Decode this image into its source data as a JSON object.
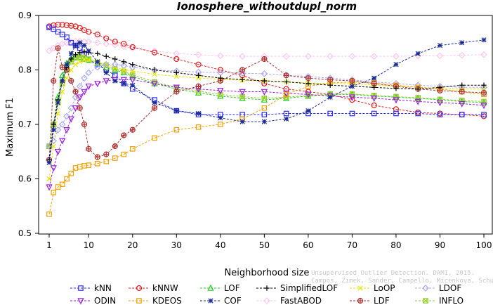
{
  "chart_data": {
    "type": "line",
    "title": "Ionosphere_withoutdupl_norm",
    "xlabel": "Neighborhood size",
    "ylabel": "Maximum F1",
    "xlim": [
      1,
      100
    ],
    "ylim": [
      0.5,
      0.9
    ],
    "xticks": [
      "1",
      "10",
      "20",
      "30",
      "40",
      "50",
      "60",
      "70",
      "80",
      "90",
      "100"
    ],
    "yticks": [
      "0.5",
      "0.6",
      "0.7",
      "0.8",
      "0.9"
    ],
    "grid": false,
    "legend_position": "bottom",
    "x": [
      1,
      2,
      3,
      4,
      5,
      6,
      7,
      8,
      9,
      10,
      12,
      14,
      16,
      18,
      20,
      25,
      30,
      35,
      40,
      45,
      50,
      55,
      60,
      65,
      70,
      75,
      80,
      85,
      90,
      95,
      100
    ],
    "series": [
      {
        "name": "kNN",
        "color": "#2a2aff",
        "marker": "square",
        "values": [
          0.878,
          0.875,
          0.87,
          0.865,
          0.86,
          0.85,
          0.845,
          0.84,
          0.83,
          0.818,
          0.81,
          0.8,
          0.79,
          0.775,
          0.765,
          0.745,
          0.725,
          0.718,
          0.718,
          0.718,
          0.718,
          0.72,
          0.72,
          0.72,
          0.72,
          0.72,
          0.72,
          0.72,
          0.718,
          0.718,
          0.718
        ]
      },
      {
        "name": "kNNW",
        "color": "#e41a1c",
        "marker": "circle",
        "values": [
          0.88,
          0.882,
          0.883,
          0.883,
          0.882,
          0.881,
          0.88,
          0.877,
          0.873,
          0.87,
          0.865,
          0.858,
          0.852,
          0.848,
          0.842,
          0.832,
          0.82,
          0.81,
          0.8,
          0.79,
          0.775,
          0.765,
          0.76,
          0.755,
          0.745,
          0.735,
          0.728,
          0.722,
          0.72,
          0.718,
          0.715
        ]
      },
      {
        "name": "LOF",
        "color": "#22cc22",
        "marker": "triangle",
        "values": [
          0.66,
          0.7,
          0.75,
          0.79,
          0.812,
          0.82,
          0.823,
          0.823,
          0.82,
          0.818,
          0.812,
          0.805,
          0.8,
          0.795,
          0.788,
          0.775,
          0.765,
          0.758,
          0.752,
          0.748,
          0.745,
          0.748,
          0.752,
          0.755,
          0.755,
          0.752,
          0.75,
          0.748,
          0.745,
          0.742,
          0.74
        ]
      },
      {
        "name": "SimplifiedLOF",
        "color": "#000000",
        "marker": "plus",
        "values": [
          0.635,
          0.7,
          0.745,
          0.78,
          0.805,
          0.82,
          0.828,
          0.832,
          0.833,
          0.832,
          0.83,
          0.825,
          0.82,
          0.815,
          0.81,
          0.8,
          0.795,
          0.79,
          0.785,
          0.782,
          0.78,
          0.778,
          0.775,
          0.772,
          0.77,
          0.768,
          0.766,
          0.765,
          0.768,
          0.772,
          0.772
        ]
      },
      {
        "name": "LoOP",
        "color": "#e6e600",
        "marker": "cross",
        "values": [
          0.6,
          0.66,
          0.72,
          0.76,
          0.785,
          0.8,
          0.81,
          0.815,
          0.818,
          0.818,
          0.815,
          0.81,
          0.805,
          0.8,
          0.798,
          0.792,
          0.788,
          0.785,
          0.783,
          0.781,
          0.78,
          0.778,
          0.776,
          0.775,
          0.775,
          0.772,
          0.77,
          0.768,
          0.766,
          0.765,
          0.765
        ]
      },
      {
        "name": "LDOF",
        "color": "#a8a8f0",
        "marker": "diamond",
        "values": [
          0.66,
          0.67,
          0.69,
          0.7,
          0.715,
          0.73,
          0.75,
          0.77,
          0.785,
          0.795,
          0.805,
          0.81,
          0.81,
          0.808,
          0.805,
          0.8,
          0.798,
          0.796,
          0.795,
          0.794,
          0.793,
          0.79,
          0.788,
          0.785,
          0.782,
          0.778,
          0.775,
          0.772,
          0.77,
          0.768,
          0.768
        ]
      },
      {
        "name": "ODIN",
        "color": "#9a1ce0",
        "marker": "triangle-down",
        "values": [
          0.585,
          0.62,
          0.65,
          0.67,
          0.69,
          0.71,
          0.73,
          0.75,
          0.76,
          0.77,
          0.775,
          0.78,
          0.782,
          0.782,
          0.782,
          0.775,
          0.768,
          0.765,
          0.762,
          0.76,
          0.76,
          0.757,
          0.755,
          0.752,
          0.75,
          0.748,
          0.745,
          0.742,
          0.74,
          0.738,
          0.735
        ]
      },
      {
        "name": "KDEOS",
        "color": "#f0a000",
        "marker": "square",
        "values": [
          0.535,
          0.575,
          0.585,
          0.59,
          0.6,
          0.61,
          0.62,
          0.622,
          0.624,
          0.625,
          0.628,
          0.632,
          0.638,
          0.645,
          0.655,
          0.675,
          0.69,
          0.695,
          0.7,
          0.71,
          0.73,
          0.755,
          0.77,
          0.776,
          0.778,
          0.776,
          0.772,
          0.768,
          0.765,
          0.76,
          0.755
        ]
      },
      {
        "name": "COF",
        "color": "#1a2a90",
        "marker": "asterisk",
        "values": [
          0.63,
          0.69,
          0.74,
          0.78,
          0.81,
          0.83,
          0.845,
          0.85,
          0.845,
          0.835,
          0.815,
          0.795,
          0.78,
          0.775,
          0.772,
          0.74,
          0.725,
          0.72,
          0.712,
          0.705,
          0.705,
          0.71,
          0.725,
          0.75,
          0.77,
          0.785,
          0.81,
          0.83,
          0.845,
          0.85,
          0.855
        ]
      },
      {
        "name": "FastABOD",
        "color": "#f8c8f0",
        "marker": "diamond",
        "values": [
          0.835,
          0.84,
          0.845,
          0.848,
          0.85,
          0.852,
          0.853,
          0.853,
          0.852,
          0.852,
          0.85,
          0.848,
          0.846,
          0.843,
          0.84,
          0.835,
          0.83,
          0.828,
          0.826,
          0.825,
          0.825,
          0.825,
          0.825,
          0.825,
          0.825,
          0.825,
          0.825,
          0.826,
          0.826,
          0.827,
          0.828
        ]
      },
      {
        "name": "LDF",
        "color": "#b03030",
        "marker": "circled-plus",
        "values": [
          0.635,
          0.78,
          0.84,
          0.805,
          0.8,
          0.78,
          0.76,
          0.73,
          0.7,
          0.655,
          0.64,
          0.645,
          0.66,
          0.68,
          0.69,
          0.73,
          0.76,
          0.77,
          0.78,
          0.8,
          0.82,
          0.79,
          0.785,
          0.782,
          0.78,
          0.775,
          0.77,
          0.765,
          0.762,
          0.76,
          0.758
        ]
      },
      {
        "name": "INFLO",
        "color": "#9acd32",
        "marker": "square-cross",
        "values": [
          0.66,
          0.7,
          0.74,
          0.775,
          0.8,
          0.815,
          0.822,
          0.824,
          0.822,
          0.82,
          0.814,
          0.808,
          0.802,
          0.797,
          0.791,
          0.778,
          0.768,
          0.761,
          0.755,
          0.751,
          0.748,
          0.75,
          0.753,
          0.756,
          0.756,
          0.753,
          0.751,
          0.749,
          0.746,
          0.744,
          0.742
        ]
      }
    ]
  },
  "watermark": {
    "line1": "Unsupervised Outlier Detection. DAMI, 2015.",
    "line2": "Campos, Zimek, Sander, Campello, Micenkova, Schubert, Assent, Houle"
  }
}
